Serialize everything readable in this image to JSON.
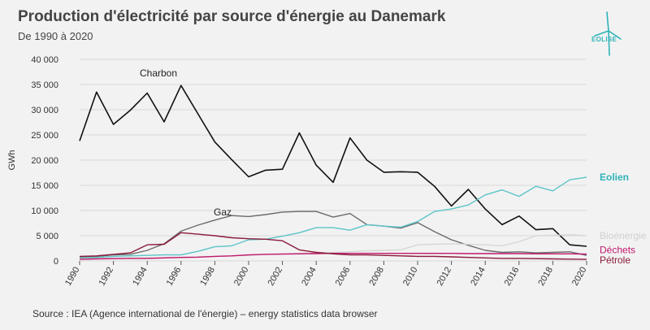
{
  "header": {
    "title": "Production d'électricité par source d'énergie au Danemark",
    "subtitle": "De 1990 à 2020"
  },
  "brand": {
    "name": "EOLISE",
    "color": "#2fb3b8"
  },
  "footer": {
    "source": "Source : IEA (Agence international de l'énergie) – energy statistics data browser"
  },
  "chart_data": {
    "type": "line",
    "title": "Production d'électricité par source d'énergie au Danemark",
    "subtitle": "De 1990 à 2020",
    "xlabel": "",
    "ylabel": "GWh",
    "ylim": [
      0,
      40000
    ],
    "yticks": [
      0,
      5000,
      10000,
      15000,
      20000,
      25000,
      30000,
      35000,
      40000
    ],
    "ytick_labels": [
      "0",
      "5 000",
      "10 000",
      "15 000",
      "20 000",
      "25 000",
      "30 000",
      "35 000",
      "40 000"
    ],
    "xlim": [
      1990,
      2020
    ],
    "xticks": [
      1990,
      1992,
      1994,
      1996,
      1998,
      2000,
      2002,
      2004,
      2006,
      2008,
      2010,
      2012,
      2014,
      2016,
      2018,
      2020
    ],
    "grid": "horizontal",
    "x": [
      1990,
      1991,
      1992,
      1993,
      1994,
      1995,
      1996,
      1997,
      1998,
      1999,
      2000,
      2001,
      2002,
      2003,
      2004,
      2005,
      2006,
      2007,
      2008,
      2009,
      2010,
      2011,
      2012,
      2013,
      2014,
      2015,
      2016,
      2017,
      2018,
      2019,
      2020
    ],
    "series": [
      {
        "name": "Charbon",
        "color": "#111111",
        "values": [
          23800,
          33500,
          27100,
          29900,
          33300,
          27600,
          34800,
          29200,
          23600,
          20100,
          16700,
          18000,
          18200,
          25400,
          19000,
          15600,
          24400,
          20000,
          17600,
          17700,
          17600,
          14800,
          10900,
          14200,
          10300,
          7200,
          8900,
          6200,
          6400,
          3200,
          2900
        ]
      },
      {
        "name": "Gaz",
        "color": "#6b6b6b",
        "values": [
          700,
          900,
          1200,
          1300,
          2100,
          3400,
          5900,
          7100,
          8100,
          9000,
          8800,
          9200,
          9700,
          9800,
          9800,
          8700,
          9400,
          7200,
          6900,
          6500,
          7600,
          5800,
          4200,
          3100,
          2100,
          1700,
          1800,
          1600,
          1700,
          1800,
          1100
        ]
      },
      {
        "name": "Eolien",
        "color": "#5bc4c8",
        "values": [
          600,
          700,
          900,
          1000,
          1100,
          1200,
          1200,
          1900,
          2800,
          3000,
          4200,
          4300,
          4900,
          5600,
          6600,
          6600,
          6100,
          7200,
          6900,
          6700,
          7800,
          9800,
          10300,
          11100,
          13100,
          14100,
          12800,
          14800,
          13900,
          16100,
          16600
        ]
      },
      {
        "name": "Bioénergie",
        "color": "#d6d6d6",
        "values": [
          400,
          450,
          500,
          550,
          600,
          650,
          700,
          800,
          900,
          1000,
          1100,
          1300,
          1400,
          1500,
          1600,
          1700,
          1800,
          2000,
          2100,
          2200,
          3200,
          3300,
          3400,
          3300,
          3200,
          3000,
          3800,
          5000,
          5100,
          5200,
          5000
        ]
      },
      {
        "name": "Déchets",
        "color": "#c0186a",
        "values": [
          300,
          400,
          450,
          500,
          500,
          600,
          700,
          750,
          900,
          1000,
          1200,
          1300,
          1350,
          1400,
          1450,
          1500,
          1500,
          1500,
          1500,
          1500,
          1500,
          1500,
          1500,
          1450,
          1450,
          1450,
          1450,
          1400,
          1400,
          1400,
          1350
        ]
      },
      {
        "name": "Pétrole",
        "color": "#8b1a3a",
        "values": [
          900,
          1000,
          1300,
          1600,
          3200,
          3300,
          5600,
          5300,
          5000,
          4600,
          4400,
          4300,
          4000,
          2200,
          1700,
          1400,
          1200,
          1200,
          1100,
          1000,
          900,
          900,
          800,
          700,
          600,
          500,
          500,
          450,
          400,
          350,
          300
        ]
      }
    ],
    "annotations": [
      {
        "text": "Charbon",
        "series": "Charbon"
      },
      {
        "text": "Gaz",
        "series": "Gaz"
      }
    ]
  }
}
